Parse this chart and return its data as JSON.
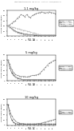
{
  "panel1": {
    "title": "1.1 mg/kg",
    "ylabel": "Serum TNFα (pg/ml)",
    "x": [
      0,
      1,
      2,
      3,
      4,
      5,
      6,
      7,
      8,
      9,
      10,
      11,
      12,
      13,
      14,
      15,
      16,
      17,
      18,
      19,
      20,
      21,
      22,
      23,
      24,
      25
    ],
    "lines": [
      {
        "label": "IgG1 + TNFα",
        "color": "#888888",
        "style": "-",
        "marker": "o",
        "y": [
          20,
          22,
          25,
          28,
          30,
          35,
          38,
          42,
          40,
          38,
          42,
          38,
          36,
          40,
          42,
          44,
          45,
          46,
          47,
          46,
          45,
          46,
          47,
          46,
          45,
          44
        ]
      },
      {
        "label": "mAb1 + TNFα",
        "color": "#555555",
        "style": "-",
        "marker": "s",
        "y": [
          20,
          18,
          15,
          12,
          10,
          8,
          7,
          6,
          5,
          4,
          4,
          3,
          3,
          3,
          2,
          2,
          2,
          2,
          2,
          2,
          2,
          2,
          2,
          2,
          2,
          2
        ]
      },
      {
        "label": "mAb2 + TNFα",
        "color": "#aaaaaa",
        "style": "-",
        "marker": "^",
        "y": [
          20,
          17,
          14,
          11,
          9,
          7,
          6,
          5,
          4,
          4,
          3,
          3,
          3,
          3,
          3,
          3,
          2,
          2,
          2,
          2,
          2,
          2,
          2,
          2,
          2,
          2
        ]
      },
      {
        "label": "Placebo + TNFα",
        "color": "#bbbbbb",
        "style": "--",
        "marker": "D",
        "y": [
          20,
          19,
          18,
          17,
          16,
          15,
          14,
          13,
          12,
          11,
          10,
          9,
          8,
          7,
          6,
          5,
          4,
          3,
          2,
          2,
          2,
          2,
          2,
          2,
          2,
          2
        ]
      }
    ],
    "ylim": [
      0,
      50
    ],
    "yticks": [
      0,
      10,
      20,
      30,
      40,
      50
    ]
  },
  "panel2": {
    "title": "5 mg/kg",
    "ylabel": "Serum TNFα (pg/ml)",
    "x": [
      0,
      1,
      2,
      3,
      4,
      5,
      6,
      7,
      8,
      9,
      10,
      11,
      12,
      13,
      14,
      15,
      16,
      17,
      18,
      19,
      20,
      21,
      22,
      23,
      24,
      25
    ],
    "lines": [
      {
        "label": "IgG1 + TNFα",
        "color": "#888888",
        "style": "-",
        "marker": "o",
        "y": [
          40,
          32,
          22,
          16,
          12,
          10,
          9,
          8,
          8,
          8,
          7,
          8,
          9,
          10,
          10,
          11,
          12,
          14,
          18,
          22,
          26,
          30,
          34,
          36,
          38,
          40
        ]
      },
      {
        "label": "mAb1 + TNFα",
        "color": "#555555",
        "style": "-",
        "marker": "s",
        "y": [
          40,
          25,
          15,
          10,
          7,
          5,
          4,
          3,
          2,
          2,
          2,
          2,
          2,
          2,
          2,
          2,
          2,
          2,
          2,
          2,
          2,
          2,
          2,
          2,
          2,
          2
        ]
      },
      {
        "label": "mAb2 + TNFα",
        "color": "#aaaaaa",
        "style": "--",
        "marker": "^",
        "y": [
          40,
          28,
          18,
          12,
          8,
          6,
          4,
          3,
          2,
          2,
          2,
          2,
          2,
          2,
          2,
          2,
          2,
          2,
          2,
          2,
          2,
          2,
          2,
          2,
          2,
          2
        ]
      }
    ],
    "ylim": [
      0,
      50
    ],
    "yticks": [
      0,
      10,
      20,
      30,
      40,
      50
    ]
  },
  "panel3": {
    "title": "10 mg/kg",
    "ylabel": "Serum TNFα (pg/ml)",
    "x": [
      0,
      1,
      2,
      3,
      4,
      5,
      6,
      7,
      8,
      9,
      10,
      11,
      12,
      13,
      14,
      15,
      16,
      17,
      18,
      19,
      20,
      21,
      22,
      23,
      24,
      25
    ],
    "lines": [
      {
        "label": "IgG1 + TNFα",
        "color": "#888888",
        "style": "-",
        "marker": "o",
        "y": [
          40,
          28,
          18,
          12,
          8,
          5,
          4,
          3,
          3,
          2,
          2,
          2,
          2,
          2,
          2,
          2,
          3,
          3,
          4,
          5,
          6,
          7,
          8,
          9,
          10,
          11
        ]
      },
      {
        "label": "mAb1 + TNFα",
        "color": "#555555",
        "style": "-",
        "marker": "s",
        "y": [
          40,
          22,
          10,
          5,
          3,
          2,
          2,
          2,
          2,
          2,
          2,
          2,
          2,
          2,
          2,
          2,
          2,
          2,
          2,
          2,
          2,
          2,
          2,
          2,
          2,
          2
        ]
      }
    ],
    "ylim": [
      0,
      50
    ],
    "yticks": [
      0,
      10,
      20,
      30,
      40,
      50
    ]
  },
  "header_text": "Patent Application Publication   Sep. 29, 2011   Sheet 1 of 8   US 2011/0236388 A1",
  "figure_labels": [
    "FIG. 1A",
    "FIG. 1B",
    "FIG. 1C"
  ],
  "bg_color": "#ffffff",
  "text_color": "#000000",
  "border_color": "#000000"
}
